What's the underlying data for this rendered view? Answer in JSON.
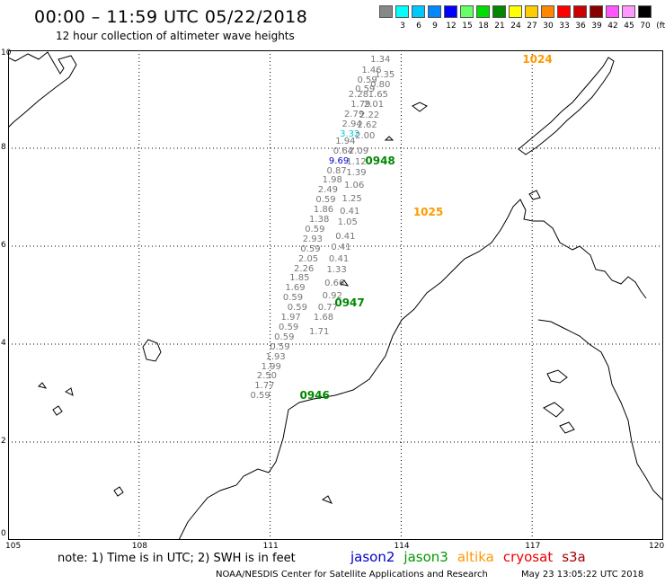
{
  "header": {
    "title": "00:00 – 11:59 UTC 05/22/2018",
    "subtitle": "12 hour collection of altimeter wave heights"
  },
  "color_scale": {
    "unit": "(ft)",
    "swatches": [
      {
        "label": "",
        "color": "#888888"
      },
      {
        "label": "3",
        "color": "#00ffff"
      },
      {
        "label": "6",
        "color": "#00c8ff"
      },
      {
        "label": "9",
        "color": "#0088ff"
      },
      {
        "label": "12",
        "color": "#0000ff"
      },
      {
        "label": "15",
        "color": "#66ff66"
      },
      {
        "label": "18",
        "color": "#00dd00"
      },
      {
        "label": "21",
        "color": "#008800"
      },
      {
        "label": "24",
        "color": "#ffff00"
      },
      {
        "label": "27",
        "color": "#ffcc00"
      },
      {
        "label": "30",
        "color": "#ff8800"
      },
      {
        "label": "33",
        "color": "#ff0000"
      },
      {
        "label": "36",
        "color": "#cc0000"
      },
      {
        "label": "39",
        "color": "#880000"
      },
      {
        "label": "42",
        "color": "#ff55ff"
      },
      {
        "label": "45",
        "color": "#ff99ff"
      },
      {
        "label": "70",
        "color": "#000000"
      }
    ]
  },
  "map": {
    "lon_min": 105,
    "lon_max": 120,
    "lat_min": 0,
    "lat_max": 10,
    "x_ticks": [
      "105",
      "108",
      "111",
      "114",
      "117",
      "120"
    ],
    "y_ticks": [
      "0",
      "2",
      "4",
      "6",
      "8",
      "10"
    ],
    "wave_heights": [
      {
        "v": "1.34",
        "lon": 113.5,
        "lat": 9.82
      },
      {
        "v": "1.46",
        "lon": 113.3,
        "lat": 9.6
      },
      {
        "v": "1.35",
        "lon": 113.6,
        "lat": 9.5
      },
      {
        "v": "0.59",
        "lon": 113.2,
        "lat": 9.4
      },
      {
        "v": "0.80",
        "lon": 113.5,
        "lat": 9.3
      },
      {
        "v": "0.59",
        "lon": 113.15,
        "lat": 9.22
      },
      {
        "v": "1.65",
        "lon": 113.45,
        "lat": 9.1
      },
      {
        "v": "2.28",
        "lon": 113.0,
        "lat": 9.1
      },
      {
        "v": "1.79",
        "lon": 113.05,
        "lat": 8.9
      },
      {
        "v": "2.01",
        "lon": 113.35,
        "lat": 8.9
      },
      {
        "v": "2.79",
        "lon": 112.9,
        "lat": 8.7
      },
      {
        "v": "2.22",
        "lon": 113.25,
        "lat": 8.68
      },
      {
        "v": "2.94",
        "lon": 112.85,
        "lat": 8.5
      },
      {
        "v": "2.62",
        "lon": 113.2,
        "lat": 8.48
      },
      {
        "v": "3.32",
        "lon": 112.8,
        "lat": 8.3,
        "c": "#00ccdd"
      },
      {
        "v": "2.00",
        "lon": 113.15,
        "lat": 8.25
      },
      {
        "v": "1.94",
        "lon": 112.7,
        "lat": 8.15
      },
      {
        "v": "0.64",
        "lon": 112.65,
        "lat": 7.95
      },
      {
        "v": "2.09",
        "lon": 113.0,
        "lat": 7.95
      },
      {
        "v": "9.69",
        "lon": 112.55,
        "lat": 7.75,
        "c": "#0000cc"
      },
      {
        "v": "1.12",
        "lon": 112.95,
        "lat": 7.72
      },
      {
        "v": "0.87",
        "lon": 112.5,
        "lat": 7.55
      },
      {
        "v": "1.39",
        "lon": 112.95,
        "lat": 7.5
      },
      {
        "v": "1.98",
        "lon": 112.4,
        "lat": 7.35
      },
      {
        "v": "1.06",
        "lon": 112.9,
        "lat": 7.25
      },
      {
        "v": "2.49",
        "lon": 112.3,
        "lat": 7.15
      },
      {
        "v": "0.59",
        "lon": 112.25,
        "lat": 6.95
      },
      {
        "v": "1.25",
        "lon": 112.85,
        "lat": 6.98
      },
      {
        "v": "1.86",
        "lon": 112.2,
        "lat": 6.75
      },
      {
        "v": "0.41",
        "lon": 112.8,
        "lat": 6.72
      },
      {
        "v": "1.38",
        "lon": 112.1,
        "lat": 6.55
      },
      {
        "v": "1.05",
        "lon": 112.75,
        "lat": 6.5
      },
      {
        "v": "0.59",
        "lon": 112.0,
        "lat": 6.35
      },
      {
        "v": "0.41",
        "lon": 112.7,
        "lat": 6.2
      },
      {
        "v": "2.93",
        "lon": 111.95,
        "lat": 6.15
      },
      {
        "v": "0.59",
        "lon": 111.9,
        "lat": 5.95
      },
      {
        "v": "0.41",
        "lon": 112.6,
        "lat": 5.98
      },
      {
        "v": "2.05",
        "lon": 111.85,
        "lat": 5.75
      },
      {
        "v": "0.41",
        "lon": 112.55,
        "lat": 5.75
      },
      {
        "v": "2.26",
        "lon": 111.75,
        "lat": 5.55
      },
      {
        "v": "1.33",
        "lon": 112.5,
        "lat": 5.52
      },
      {
        "v": "1.85",
        "lon": 111.65,
        "lat": 5.35
      },
      {
        "v": "0.66",
        "lon": 112.45,
        "lat": 5.25
      },
      {
        "v": "1.69",
        "lon": 111.55,
        "lat": 5.15
      },
      {
        "v": "0.92",
        "lon": 112.4,
        "lat": 5.0
      },
      {
        "v": "0.59",
        "lon": 111.5,
        "lat": 4.95
      },
      {
        "v": "0.59",
        "lon": 111.6,
        "lat": 4.75
      },
      {
        "v": "0.77",
        "lon": 112.3,
        "lat": 4.75
      },
      {
        "v": "1.97",
        "lon": 111.45,
        "lat": 4.55
      },
      {
        "v": "1.68",
        "lon": 112.2,
        "lat": 4.55
      },
      {
        "v": "0.59",
        "lon": 111.4,
        "lat": 4.35
      },
      {
        "v": "1.71",
        "lon": 112.1,
        "lat": 4.25
      },
      {
        "v": "0.59",
        "lon": 111.3,
        "lat": 4.15
      },
      {
        "v": "0.59",
        "lon": 111.2,
        "lat": 3.95
      },
      {
        "v": "1.93",
        "lon": 111.1,
        "lat": 3.75
      },
      {
        "v": "1.99",
        "lon": 111.0,
        "lat": 3.55
      },
      {
        "v": "2.50",
        "lon": 110.9,
        "lat": 3.35
      },
      {
        "v": "1.77",
        "lon": 110.85,
        "lat": 3.15
      },
      {
        "v": "0.59",
        "lon": 110.75,
        "lat": 2.95
      }
    ],
    "time_labels": [
      {
        "t": "1024",
        "lon": 116.9,
        "lat": 9.82,
        "c": "#ff9900"
      },
      {
        "t": "0948",
        "lon": 113.3,
        "lat": 7.75,
        "c": "#008800"
      },
      {
        "t": "1025",
        "lon": 114.4,
        "lat": 6.7,
        "c": "#ff9900"
      },
      {
        "t": "0947",
        "lon": 112.6,
        "lat": 4.85,
        "c": "#008800"
      },
      {
        "t": "0946",
        "lon": 111.8,
        "lat": 2.95,
        "c": "#008800"
      }
    ]
  },
  "footer": {
    "note": "note: 1) Time is in UTC; 2) SWH is in feet",
    "legend": [
      {
        "name": "jason2",
        "color": "#0000cc"
      },
      {
        "name": "jason3",
        "color": "#009900"
      },
      {
        "name": "altika",
        "color": "#ff9900"
      },
      {
        "name": "cryosat",
        "color": "#ee0000"
      },
      {
        "name": "s3a",
        "color": "#aa0000"
      }
    ],
    "credit": "NOAA/NESDIS Center for Satellite Applications and Research",
    "timestamp": "May 23 13:05:22 UTC 2018"
  }
}
